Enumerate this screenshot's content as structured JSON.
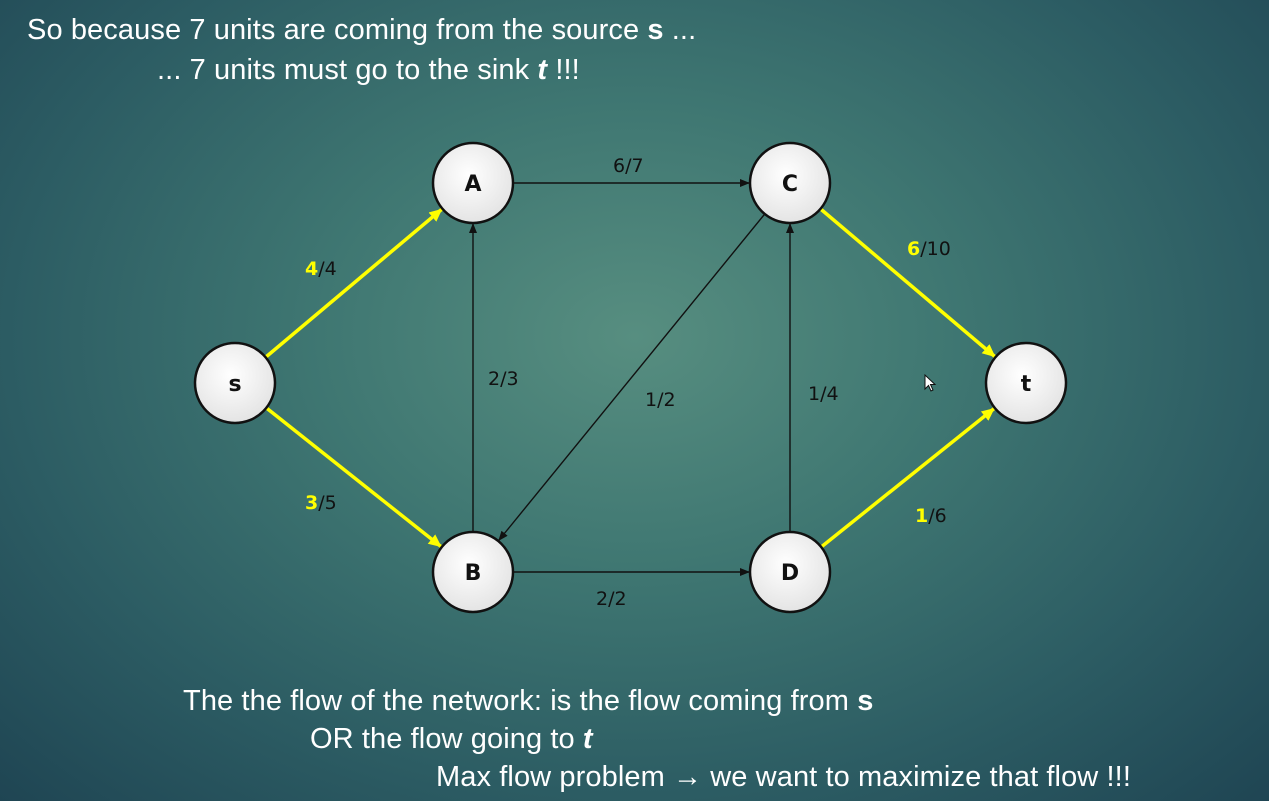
{
  "header": {
    "line1_pre": "So because 7 units are coming from the source ",
    "line1_bold": "s",
    "line1_post": " ...",
    "line2_pre": "... 7 units must go to the sink ",
    "line2_bold": "t",
    "line2_post": " !!!"
  },
  "footer": {
    "line1_pre": "The the flow of the network: is the flow coming from ",
    "line1_bold": "s",
    "line2_pre": "OR the flow going to ",
    "line2_bold": "t",
    "line3": "Max flow problem → we want to maximize that flow !!!"
  },
  "graph": {
    "highlight_color": "#ffff00",
    "nodes": [
      {
        "id": "s",
        "label": "s"
      },
      {
        "id": "A",
        "label": "A"
      },
      {
        "id": "B",
        "label": "B"
      },
      {
        "id": "C",
        "label": "C"
      },
      {
        "id": "D",
        "label": "D"
      },
      {
        "id": "t",
        "label": "t"
      }
    ],
    "edges": [
      {
        "from": "s",
        "to": "A",
        "flow": "4",
        "capacity": "4",
        "label": "4/4",
        "highlighted": true
      },
      {
        "from": "s",
        "to": "B",
        "flow": "3",
        "capacity": "5",
        "label": "3/5",
        "highlighted": true
      },
      {
        "from": "A",
        "to": "C",
        "flow": "6",
        "capacity": "7",
        "label": "6/7",
        "highlighted": false
      },
      {
        "from": "B",
        "to": "A",
        "flow": "2",
        "capacity": "3",
        "label": "2/3",
        "highlighted": false
      },
      {
        "from": "C",
        "to": "B",
        "flow": "1",
        "capacity": "2",
        "label": "1/2",
        "highlighted": false
      },
      {
        "from": "D",
        "to": "C",
        "flow": "1",
        "capacity": "4",
        "label": "1/4",
        "highlighted": false
      },
      {
        "from": "B",
        "to": "D",
        "flow": "2",
        "capacity": "2",
        "label": "2/2",
        "highlighted": false
      },
      {
        "from": "C",
        "to": "t",
        "flow": "6",
        "capacity": "10",
        "label": "6/10",
        "highlighted": true
      },
      {
        "from": "D",
        "to": "t",
        "flow": "1",
        "capacity": "6",
        "label": "1/6",
        "highlighted": true
      }
    ]
  }
}
